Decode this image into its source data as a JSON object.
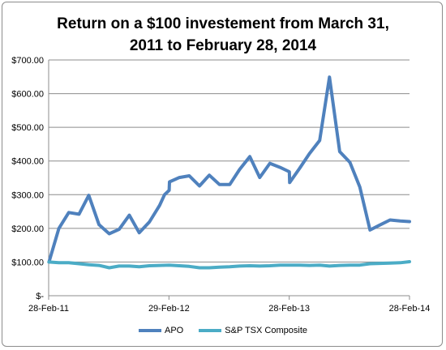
{
  "chart_data": {
    "type": "line",
    "title_line1": "Return on a $100 investement from March 31,",
    "title_line2": "2011 to February 28, 2014",
    "ylim": [
      0,
      700
    ],
    "y_ticks": [
      0,
      100,
      200,
      300,
      400,
      500,
      600,
      700
    ],
    "y_tick_labels": [
      "$-",
      "$100.00",
      "$200.00",
      "$300.00",
      "$400.00",
      "$500.00",
      "$600.00",
      "$700.00"
    ],
    "x_tick_labels": [
      "28-Feb-11",
      "29-Feb-12",
      "28-Feb-13",
      "28-Feb-14"
    ],
    "xlim": [
      "2011-02-28",
      "2014-02-28"
    ],
    "grid": true,
    "legend_position": "bottom",
    "series": [
      {
        "name": "APO",
        "color": "#4f81bd",
        "points": [
          [
            "2011-03-01",
            100
          ],
          [
            "2011-03-31",
            200
          ],
          [
            "2011-04-30",
            247
          ],
          [
            "2011-05-31",
            242
          ],
          [
            "2011-06-30",
            298
          ],
          [
            "2011-07-31",
            211
          ],
          [
            "2011-08-31",
            184
          ],
          [
            "2011-09-30",
            197
          ],
          [
            "2011-10-31",
            239
          ],
          [
            "2011-11-30",
            187
          ],
          [
            "2011-12-31",
            219
          ],
          [
            "2012-01-31",
            268
          ],
          [
            "2012-02-15",
            300
          ],
          [
            "2012-02-29",
            313
          ],
          [
            "2012-03-01",
            338
          ],
          [
            "2012-03-31",
            351
          ],
          [
            "2012-04-30",
            356
          ],
          [
            "2012-05-31",
            326
          ],
          [
            "2012-06-30",
            358
          ],
          [
            "2012-07-31",
            330
          ],
          [
            "2012-08-31",
            330
          ],
          [
            "2012-09-30",
            375
          ],
          [
            "2012-10-31",
            413
          ],
          [
            "2012-11-30",
            351
          ],
          [
            "2012-12-31",
            393
          ],
          [
            "2013-01-31",
            381
          ],
          [
            "2013-02-28",
            368
          ],
          [
            "2013-03-01",
            336
          ],
          [
            "2013-03-31",
            378
          ],
          [
            "2013-04-30",
            422
          ],
          [
            "2013-05-31",
            461
          ],
          [
            "2013-06-30",
            649
          ],
          [
            "2013-07-31",
            428
          ],
          [
            "2013-08-31",
            396
          ],
          [
            "2013-09-30",
            323
          ],
          [
            "2013-10-31",
            195
          ],
          [
            "2013-11-30",
            210
          ],
          [
            "2013-12-31",
            225
          ],
          [
            "2014-01-31",
            222
          ],
          [
            "2014-02-28",
            220
          ]
        ]
      },
      {
        "name": "S&P TSX Composite",
        "color": "#4bacc6",
        "points": [
          [
            "2011-03-01",
            100
          ],
          [
            "2011-03-31",
            98
          ],
          [
            "2011-04-30",
            98
          ],
          [
            "2011-05-31",
            95
          ],
          [
            "2011-06-30",
            92
          ],
          [
            "2011-07-31",
            90
          ],
          [
            "2011-08-31",
            83
          ],
          [
            "2011-09-30",
            88
          ],
          [
            "2011-10-31",
            88
          ],
          [
            "2011-11-30",
            86
          ],
          [
            "2011-12-31",
            89
          ],
          [
            "2012-01-31",
            90
          ],
          [
            "2012-02-29",
            91
          ],
          [
            "2012-03-31",
            89
          ],
          [
            "2012-04-30",
            87
          ],
          [
            "2012-05-31",
            83
          ],
          [
            "2012-06-30",
            83
          ],
          [
            "2012-07-31",
            85
          ],
          [
            "2012-08-31",
            86
          ],
          [
            "2012-09-30",
            88
          ],
          [
            "2012-10-31",
            89
          ],
          [
            "2012-11-30",
            88
          ],
          [
            "2012-12-31",
            89
          ],
          [
            "2013-01-31",
            91
          ],
          [
            "2013-02-28",
            91
          ],
          [
            "2013-03-31",
            91
          ],
          [
            "2013-04-30",
            90
          ],
          [
            "2013-05-31",
            91
          ],
          [
            "2013-06-30",
            88
          ],
          [
            "2013-07-31",
            90
          ],
          [
            "2013-08-31",
            91
          ],
          [
            "2013-09-30",
            91
          ],
          [
            "2013-10-31",
            95
          ],
          [
            "2013-11-30",
            96
          ],
          [
            "2013-12-31",
            97
          ],
          [
            "2014-01-31",
            98
          ],
          [
            "2014-02-28",
            101
          ]
        ]
      }
    ]
  }
}
